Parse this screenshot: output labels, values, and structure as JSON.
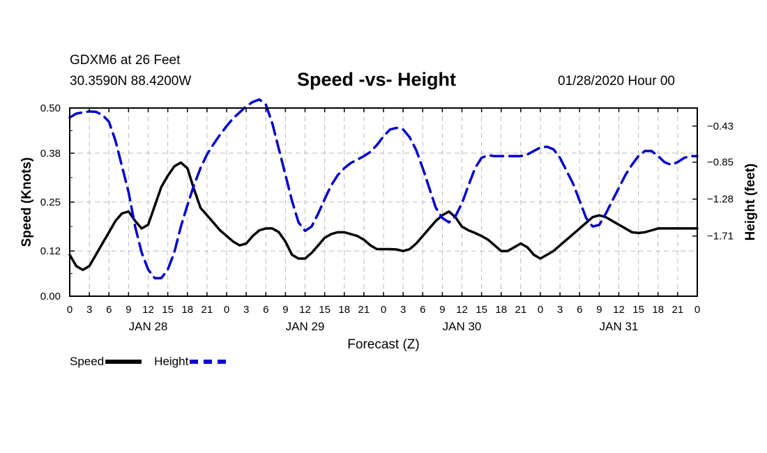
{
  "header": {
    "station": "GDXM6 at 26 Feet",
    "coords": "30.3590N 88.4200W",
    "title": "Speed -vs- Height",
    "datestamp": "01/28/2020 Hour 00"
  },
  "legend": {
    "speed_label": "Speed",
    "height_label": "Height"
  },
  "colors": {
    "speed": "#000000",
    "height": "#0000cc",
    "grid": "#bbbbbb"
  },
  "chart_data": {
    "type": "line",
    "title": "Speed -vs- Height",
    "xlabel": "Forecast (Z)",
    "ylabel": "Speed (Knots)",
    "y2label": "Height (feet)",
    "xlim": [
      0,
      96
    ],
    "ylim": [
      0,
      0.5
    ],
    "y2lim": [
      -2.41,
      -0.22
    ],
    "grid": true,
    "x_ticks": [
      0,
      3,
      6,
      9,
      12,
      15,
      18,
      21,
      24,
      27,
      30,
      33,
      36,
      39,
      42,
      45,
      48,
      51,
      54,
      57,
      60,
      63,
      66,
      69,
      72,
      75,
      78,
      81,
      84,
      87,
      90,
      93,
      96
    ],
    "x_tick_labels": [
      "0",
      "3",
      "6",
      "9",
      "12",
      "15",
      "18",
      "21",
      "0",
      "3",
      "6",
      "9",
      "12",
      "15",
      "18",
      "21",
      "0",
      "3",
      "6",
      "9",
      "12",
      "15",
      "18",
      "21",
      "0",
      "3",
      "6",
      "9",
      "12",
      "15",
      "18",
      "21",
      "0"
    ],
    "date_labels": [
      {
        "x": 12,
        "label": "JAN 28"
      },
      {
        "x": 36,
        "label": "JAN 29"
      },
      {
        "x": 60,
        "label": "JAN 30"
      },
      {
        "x": 84,
        "label": "JAN 31"
      }
    ],
    "y_ticks": [
      0.0,
      0.12,
      0.25,
      0.38,
      0.5
    ],
    "y_tick_labels": [
      "0.00",
      "0.12",
      "0.25",
      "0.38",
      "0.50"
    ],
    "y2_ticks": [
      -0.43,
      -0.85,
      -1.28,
      -1.71
    ],
    "y2_tick_labels": [
      "−0.43",
      "−0.85",
      "−1.28",
      "−1.71"
    ],
    "series": [
      {
        "name": "Speed",
        "axis": "left",
        "x": [
          0,
          1,
          2,
          3,
          4,
          5,
          6,
          7,
          8,
          9,
          10,
          11,
          12,
          13,
          14,
          15,
          16,
          17,
          18,
          19,
          20,
          21,
          22,
          23,
          24,
          25,
          26,
          27,
          28,
          29,
          30,
          31,
          32,
          33,
          34,
          35,
          36,
          37,
          38,
          39,
          40,
          41,
          42,
          43,
          44,
          45,
          46,
          47,
          48,
          49,
          50,
          51,
          52,
          53,
          54,
          55,
          56,
          57,
          58,
          59,
          60,
          61,
          62,
          63,
          64,
          65,
          66,
          67,
          68,
          69,
          70,
          71,
          72,
          73,
          74,
          75,
          76,
          77,
          78,
          79,
          80,
          81,
          82,
          83,
          84,
          85,
          86,
          87,
          88,
          89,
          90,
          91,
          92,
          93,
          94,
          95,
          96
        ],
        "values": [
          0.11,
          0.08,
          0.07,
          0.08,
          0.11,
          0.14,
          0.17,
          0.2,
          0.22,
          0.225,
          0.2,
          0.18,
          0.19,
          0.24,
          0.29,
          0.32,
          0.345,
          0.355,
          0.34,
          0.285,
          0.235,
          0.215,
          0.195,
          0.175,
          0.16,
          0.145,
          0.135,
          0.14,
          0.16,
          0.175,
          0.18,
          0.18,
          0.17,
          0.145,
          0.11,
          0.1,
          0.1,
          0.115,
          0.135,
          0.155,
          0.165,
          0.17,
          0.17,
          0.165,
          0.16,
          0.15,
          0.135,
          0.125,
          0.125,
          0.125,
          0.124,
          0.12,
          0.125,
          0.14,
          0.16,
          0.18,
          0.2,
          0.215,
          0.225,
          0.21,
          0.185,
          0.175,
          0.168,
          0.16,
          0.15,
          0.135,
          0.12,
          0.12,
          0.13,
          0.14,
          0.13,
          0.11,
          0.1,
          0.11,
          0.12,
          0.135,
          0.15,
          0.165,
          0.18,
          0.195,
          0.21,
          0.215,
          0.21,
          0.2,
          0.19,
          0.18,
          0.17,
          0.168,
          0.17,
          0.175,
          0.18,
          0.18,
          0.18,
          0.18,
          0.18,
          0.18,
          0.18
        ]
      },
      {
        "name": "Height",
        "axis": "right",
        "x": [
          0,
          1,
          2,
          3,
          4,
          5,
          6,
          7,
          8,
          9,
          10,
          11,
          12,
          13,
          14,
          15,
          16,
          17,
          18,
          19,
          20,
          21,
          22,
          23,
          24,
          25,
          26,
          27,
          28,
          29,
          30,
          31,
          32,
          33,
          34,
          35,
          36,
          37,
          38,
          39,
          40,
          41,
          42,
          43,
          44,
          45,
          46,
          47,
          48,
          49,
          50,
          51,
          52,
          53,
          54,
          55,
          56,
          57,
          58,
          59,
          60,
          61,
          62,
          63,
          64,
          65,
          66,
          67,
          68,
          69,
          70,
          71,
          72,
          73,
          74,
          75,
          76,
          77,
          78,
          79,
          80,
          81,
          82,
          83,
          84,
          85,
          86,
          87,
          88,
          89,
          90,
          91,
          92,
          93,
          94,
          95,
          96
        ],
        "values": [
          -0.33,
          -0.285,
          -0.27,
          -0.26,
          -0.265,
          -0.3,
          -0.38,
          -0.6,
          -0.9,
          -1.2,
          -1.6,
          -1.9,
          -2.1,
          -2.2,
          -2.2,
          -2.1,
          -1.9,
          -1.6,
          -1.35,
          -1.12,
          -0.92,
          -0.76,
          -0.64,
          -0.53,
          -0.43,
          -0.34,
          -0.27,
          -0.2,
          -0.15,
          -0.12,
          -0.18,
          -0.4,
          -0.7,
          -1.0,
          -1.3,
          -1.55,
          -1.65,
          -1.6,
          -1.45,
          -1.28,
          -1.12,
          -1.0,
          -0.92,
          -0.86,
          -0.82,
          -0.78,
          -0.73,
          -0.65,
          -0.55,
          -0.47,
          -0.45,
          -0.47,
          -0.56,
          -0.71,
          -0.92,
          -1.15,
          -1.38,
          -1.5,
          -1.55,
          -1.48,
          -1.33,
          -1.12,
          -0.92,
          -0.8,
          -0.77,
          -0.78,
          -0.78,
          -0.78,
          -0.78,
          -0.78,
          -0.76,
          -0.72,
          -0.68,
          -0.67,
          -0.7,
          -0.8,
          -0.95,
          -1.1,
          -1.3,
          -1.5,
          -1.6,
          -1.58,
          -1.45,
          -1.3,
          -1.15,
          -1.0,
          -0.88,
          -0.78,
          -0.72,
          -0.72,
          -0.78,
          -0.85,
          -0.88,
          -0.85,
          -0.8,
          -0.78,
          -0.78
        ]
      }
    ]
  }
}
